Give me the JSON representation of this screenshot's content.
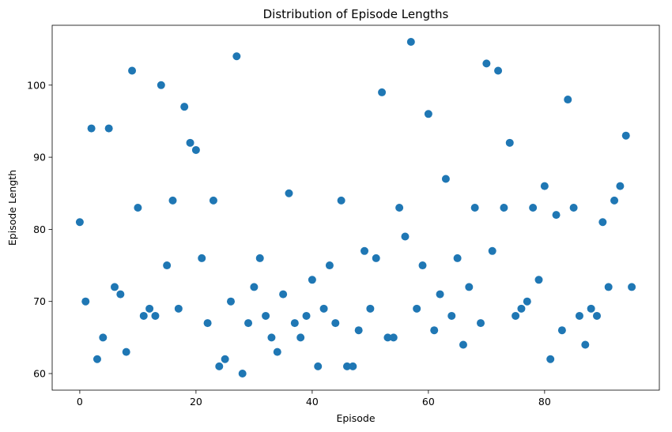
{
  "chart_data": {
    "type": "scatter",
    "title": "Distribution of Episode Lengths",
    "xlabel": "Episode",
    "ylabel": "Episode Length",
    "xlim": [
      -4.75,
      99.75
    ],
    "ylim": [
      57.7,
      108.3
    ],
    "xticks": [
      0,
      20,
      40,
      60,
      80
    ],
    "yticks": [
      60,
      70,
      80,
      90,
      100
    ],
    "grid": false,
    "marker_color": "#1f77b4",
    "series": [
      {
        "x": [
          0,
          1,
          2,
          3,
          4,
          5,
          6,
          7,
          8,
          9,
          10,
          11,
          12,
          13,
          14,
          15,
          16,
          17,
          18,
          19,
          20,
          21,
          22,
          23,
          24,
          25,
          26,
          27,
          28,
          29,
          30,
          31,
          32,
          33,
          34,
          35,
          36,
          37,
          38,
          39,
          40,
          41,
          42,
          43,
          44,
          45,
          46,
          47,
          48,
          49,
          50,
          51,
          52,
          53,
          54,
          55,
          56,
          57,
          58,
          59,
          60,
          61,
          62,
          63,
          64,
          65,
          66,
          67,
          68,
          69,
          70,
          71,
          72,
          73,
          74,
          75,
          76,
          77,
          78,
          79,
          80,
          81,
          82,
          83,
          84,
          85,
          86,
          87,
          88,
          89,
          90,
          91,
          92,
          93,
          94,
          95
        ],
        "y": [
          81,
          70,
          94,
          62,
          65,
          94,
          72,
          71,
          63,
          102,
          83,
          68,
          69,
          68,
          100,
          75,
          84,
          69,
          97,
          92,
          91,
          76,
          67,
          84,
          61,
          62,
          70,
          104,
          60,
          67,
          72,
          76,
          68,
          65,
          63,
          71,
          85,
          67,
          65,
          68,
          73,
          61,
          69,
          75,
          67,
          84,
          61,
          61,
          66,
          77,
          69,
          76,
          99,
          65,
          65,
          83,
          79,
          106,
          69,
          75,
          96,
          66,
          71,
          87,
          68,
          76,
          64,
          72,
          83,
          67,
          103,
          77,
          102,
          83,
          92,
          68,
          69,
          70,
          83,
          73,
          86,
          62,
          82,
          66,
          98,
          83,
          68,
          64,
          69,
          68,
          81,
          72,
          84,
          86,
          93,
          72
        ]
      }
    ]
  }
}
